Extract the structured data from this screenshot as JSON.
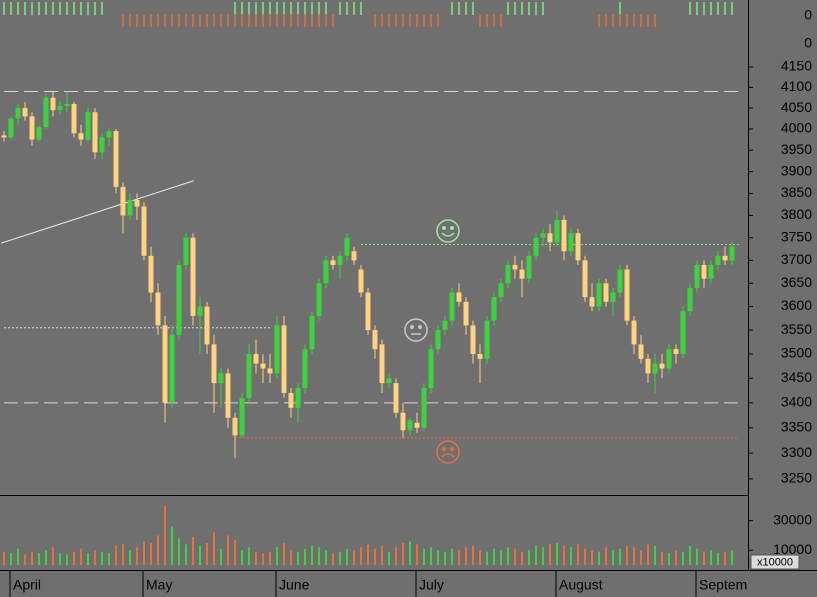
{
  "chart_data": {
    "type": "candlestick",
    "categories": [
      "April",
      null,
      null,
      null,
      null,
      null,
      null,
      null,
      null,
      null,
      null,
      null,
      null,
      null,
      null,
      null,
      null,
      null,
      null,
      "May",
      null,
      null,
      null,
      null,
      null,
      null,
      null,
      null,
      null,
      null,
      null,
      null,
      null,
      null,
      null,
      null,
      null,
      null,
      "June",
      null,
      null,
      null,
      null,
      null,
      null,
      null,
      null,
      null,
      null,
      null,
      null,
      null,
      null,
      null,
      null,
      null,
      null,
      null,
      "July",
      null,
      null,
      null,
      null,
      null,
      null,
      null,
      null,
      null,
      null,
      null,
      null,
      null,
      null,
      null,
      null,
      null,
      null,
      null,
      "August",
      null,
      null,
      null,
      null,
      null,
      null,
      null,
      null,
      null,
      null,
      null,
      null,
      null,
      null,
      null,
      null,
      null,
      null,
      null,
      "Septem",
      null,
      null,
      null,
      null,
      null,
      null
    ],
    "ohlc": [
      [
        3985,
        3995,
        3970,
        3980
      ],
      [
        3980,
        4030,
        3975,
        4025
      ],
      [
        4025,
        4060,
        4010,
        4050
      ],
      [
        4050,
        4065,
        4020,
        4030
      ],
      [
        4030,
        4040,
        3960,
        3975
      ],
      [
        3975,
        4010,
        3970,
        4005
      ],
      [
        4005,
        4085,
        4000,
        4075
      ],
      [
        4075,
        4090,
        4030,
        4045
      ],
      [
        4045,
        4065,
        4035,
        4055
      ],
      [
        4055,
        4090,
        4040,
        4060
      ],
      [
        4060,
        4065,
        3980,
        3990
      ],
      [
        3990,
        4010,
        3960,
        3975
      ],
      [
        3975,
        4050,
        3970,
        4040
      ],
      [
        4040,
        4050,
        3930,
        3945
      ],
      [
        3945,
        3990,
        3930,
        3980
      ],
      [
        3980,
        4000,
        3960,
        3995
      ],
      [
        3995,
        4000,
        3850,
        3865
      ],
      [
        3865,
        3875,
        3760,
        3800
      ],
      [
        3800,
        3850,
        3790,
        3835
      ],
      [
        3835,
        3850,
        3790,
        3820
      ],
      [
        3820,
        3830,
        3700,
        3710
      ],
      [
        3710,
        3730,
        3610,
        3630
      ],
      [
        3630,
        3650,
        3540,
        3560
      ],
      [
        3560,
        3580,
        3360,
        3400
      ],
      [
        3400,
        3560,
        3390,
        3540
      ],
      [
        3540,
        3700,
        3530,
        3690
      ],
      [
        3690,
        3760,
        3680,
        3750
      ],
      [
        3750,
        3760,
        3560,
        3580
      ],
      [
        3580,
        3620,
        3500,
        3600
      ],
      [
        3600,
        3610,
        3500,
        3520
      ],
      [
        3520,
        3540,
        3380,
        3440
      ],
      [
        3440,
        3470,
        3390,
        3460
      ],
      [
        3460,
        3470,
        3350,
        3370
      ],
      [
        3370,
        3380,
        3290,
        3335
      ],
      [
        3335,
        3420,
        3330,
        3410
      ],
      [
        3410,
        3520,
        3400,
        3500
      ],
      [
        3500,
        3530,
        3460,
        3480
      ],
      [
        3480,
        3500,
        3440,
        3470
      ],
      [
        3470,
        3500,
        3440,
        3460
      ],
      [
        3460,
        3580,
        3450,
        3560
      ],
      [
        3560,
        3580,
        3410,
        3420
      ],
      [
        3420,
        3430,
        3370,
        3390
      ],
      [
        3390,
        3440,
        3360,
        3430
      ],
      [
        3430,
        3520,
        3420,
        3510
      ],
      [
        3510,
        3590,
        3500,
        3580
      ],
      [
        3580,
        3660,
        3570,
        3650
      ],
      [
        3650,
        3710,
        3640,
        3700
      ],
      [
        3700,
        3710,
        3680,
        3690
      ],
      [
        3690,
        3720,
        3660,
        3710
      ],
      [
        3710,
        3760,
        3700,
        3750
      ],
      [
        3720,
        3730,
        3690,
        3700
      ],
      [
        3680,
        3690,
        3620,
        3630
      ],
      [
        3630,
        3640,
        3540,
        3550
      ],
      [
        3550,
        3560,
        3490,
        3510
      ],
      [
        3520,
        3530,
        3420,
        3440
      ],
      [
        3440,
        3460,
        3430,
        3450
      ],
      [
        3440,
        3450,
        3370,
        3380
      ],
      [
        3380,
        3400,
        3330,
        3345
      ],
      [
        3345,
        3370,
        3335,
        3365
      ],
      [
        3360,
        3380,
        3340,
        3350
      ],
      [
        3350,
        3440,
        3345,
        3430
      ],
      [
        3430,
        3520,
        3420,
        3510
      ],
      [
        3510,
        3560,
        3500,
        3550
      ],
      [
        3550,
        3580,
        3540,
        3570
      ],
      [
        3570,
        3640,
        3560,
        3630
      ],
      [
        3630,
        3650,
        3600,
        3610
      ],
      [
        3610,
        3620,
        3540,
        3560
      ],
      [
        3560,
        3570,
        3480,
        3500
      ],
      [
        3500,
        3520,
        3440,
        3490
      ],
      [
        3490,
        3580,
        3480,
        3570
      ],
      [
        3570,
        3630,
        3560,
        3620
      ],
      [
        3620,
        3660,
        3610,
        3650
      ],
      [
        3650,
        3700,
        3640,
        3690
      ],
      [
        3690,
        3710,
        3660,
        3680
      ],
      [
        3680,
        3700,
        3620,
        3660
      ],
      [
        3660,
        3720,
        3650,
        3710
      ],
      [
        3710,
        3760,
        3700,
        3750
      ],
      [
        3750,
        3770,
        3730,
        3760
      ],
      [
        3760,
        3780,
        3720,
        3740
      ],
      [
        3740,
        3810,
        3730,
        3790
      ],
      [
        3790,
        3800,
        3700,
        3720
      ],
      [
        3720,
        3770,
        3710,
        3760
      ],
      [
        3760,
        3770,
        3690,
        3700
      ],
      [
        3700,
        3710,
        3610,
        3620
      ],
      [
        3620,
        3650,
        3590,
        3600
      ],
      [
        3600,
        3660,
        3590,
        3650
      ],
      [
        3650,
        3660,
        3600,
        3610
      ],
      [
        3610,
        3640,
        3580,
        3630
      ],
      [
        3630,
        3690,
        3620,
        3680
      ],
      [
        3680,
        3690,
        3560,
        3570
      ],
      [
        3570,
        3580,
        3500,
        3520
      ],
      [
        3520,
        3540,
        3480,
        3490
      ],
      [
        3490,
        3500,
        3440,
        3460
      ],
      [
        3460,
        3500,
        3420,
        3480
      ],
      [
        3480,
        3500,
        3450,
        3470
      ],
      [
        3470,
        3520,
        3460,
        3510
      ],
      [
        3510,
        3520,
        3480,
        3500
      ],
      [
        3500,
        3600,
        3490,
        3590
      ],
      [
        3590,
        3650,
        3580,
        3640
      ],
      [
        3640,
        3700,
        3630,
        3690
      ],
      [
        3690,
        3700,
        3640,
        3660
      ],
      [
        3660,
        3700,
        3650,
        3690
      ],
      [
        3690,
        3720,
        3680,
        3710
      ],
      [
        3710,
        3730,
        3690,
        3700
      ],
      [
        3700,
        3740,
        3690,
        3730
      ]
    ],
    "up_color": "#3fd23f",
    "down_color": "#ffd27f",
    "ylim": [
      3219,
      4192
    ],
    "log_scale": true,
    "yticks": [
      3250,
      3300,
      3350,
      3400,
      3450,
      3500,
      3550,
      3600,
      3650,
      3700,
      3750,
      3800,
      3850,
      3900,
      3950,
      4000,
      4050,
      4100,
      4150
    ],
    "hlines": [
      {
        "value": 4090,
        "x": [
          0,
          105
        ],
        "color": "#d8d8d8",
        "dash": "14 6"
      },
      {
        "value": 3400,
        "x": [
          0,
          105
        ],
        "color": "#d8d8d8",
        "dash": "14 6"
      },
      {
        "value": 3735,
        "x": [
          51,
          105
        ],
        "color": "#7fe07f",
        "dash": "2 2"
      },
      {
        "value": 3555,
        "x": [
          0,
          38
        ],
        "color": "#d8d8d8",
        "dash": "2 2"
      },
      {
        "value": 3330,
        "x": [
          33,
          105
        ],
        "color": "#e8703a",
        "dash": "2 2"
      }
    ],
    "trendline": {
      "x": [
        -0.4,
        27.1
      ],
      "values": [
        3738,
        3879
      ],
      "color": "#e8e8e8"
    },
    "volume": {
      "values": [
        9000,
        8000,
        11000,
        7000,
        9000,
        8000,
        10000,
        12000,
        8000,
        7000,
        9000,
        11000,
        8000,
        10000,
        9000,
        8000,
        13000,
        14000,
        10000,
        12000,
        16000,
        15000,
        20000,
        40000,
        26000,
        18000,
        14000,
        19000,
        13000,
        15000,
        22000,
        11000,
        20000,
        17000,
        10000,
        12000,
        9000,
        8000,
        9000,
        12000,
        15000,
        10000,
        9000,
        11000,
        13000,
        12000,
        10000,
        8000,
        9000,
        11000,
        10000,
        12000,
        14000,
        11000,
        13000,
        9000,
        12000,
        15000,
        16000,
        14000,
        11000,
        12000,
        10000,
        9000,
        11000,
        10000,
        12000,
        13000,
        10000,
        9000,
        11000,
        10000,
        12000,
        11000,
        9000,
        10000,
        13000,
        12000,
        14000,
        15000,
        13000,
        12000,
        14000,
        11000,
        10000,
        9000,
        12000,
        10000,
        11000,
        13000,
        12000,
        10000,
        14000,
        13000,
        9000,
        8000,
        10000,
        9000,
        13000,
        11000,
        9000,
        10000,
        8000,
        9000,
        10000
      ],
      "ylim": [
        0,
        46000
      ],
      "yticks": [
        10000,
        30000
      ],
      "unit": "x10000",
      "up_color": "#3fd23f",
      "down_color": "#e8703a"
    },
    "indicators": [
      {
        "color": "#7fee7f",
        "yticks": [
          0
        ],
        "values": [
          1,
          1,
          1,
          1,
          1,
          1,
          1,
          1,
          1,
          1,
          1,
          1,
          1,
          1,
          1,
          0,
          0,
          0,
          0,
          0,
          0,
          0,
          0,
          0,
          0,
          0,
          0,
          0,
          0,
          0,
          0,
          0,
          0,
          1,
          1,
          1,
          1,
          1,
          1,
          1,
          1,
          1,
          1,
          1,
          1,
          1,
          1,
          0,
          1,
          1,
          1,
          1,
          0,
          0,
          0,
          0,
          0,
          0,
          0,
          0,
          0,
          0,
          0,
          0,
          1,
          1,
          1,
          1,
          0,
          0,
          0,
          0,
          1,
          1,
          1,
          1,
          1,
          1,
          0,
          0,
          0,
          0,
          0,
          0,
          0,
          0,
          0,
          0,
          1,
          0,
          0,
          0,
          0,
          0,
          0,
          0,
          0,
          0,
          1,
          1,
          1,
          1,
          1,
          1,
          1
        ]
      },
      {
        "color": "#e8703a",
        "yticks": [
          0
        ],
        "values": [
          0,
          0,
          0,
          0,
          0,
          0,
          0,
          0,
          0,
          0,
          0,
          0,
          0,
          0,
          0,
          0,
          0,
          1,
          1,
          1,
          1,
          1,
          1,
          1,
          1,
          1,
          1,
          1,
          1,
          1,
          1,
          1,
          1,
          1,
          1,
          1,
          1,
          1,
          1,
          1,
          1,
          1,
          1,
          1,
          1,
          1,
          1,
          1,
          0,
          0,
          0,
          0,
          0,
          1,
          1,
          1,
          1,
          1,
          1,
          1,
          1,
          1,
          1,
          0,
          0,
          0,
          0,
          0,
          1,
          1,
          1,
          1,
          0,
          0,
          0,
          0,
          0,
          0,
          0,
          0,
          0,
          0,
          0,
          0,
          0,
          1,
          1,
          1,
          1,
          1,
          1,
          1,
          1,
          1,
          0,
          0,
          0,
          0,
          0,
          0,
          0,
          0,
          0,
          0,
          0
        ]
      }
    ]
  }
}
